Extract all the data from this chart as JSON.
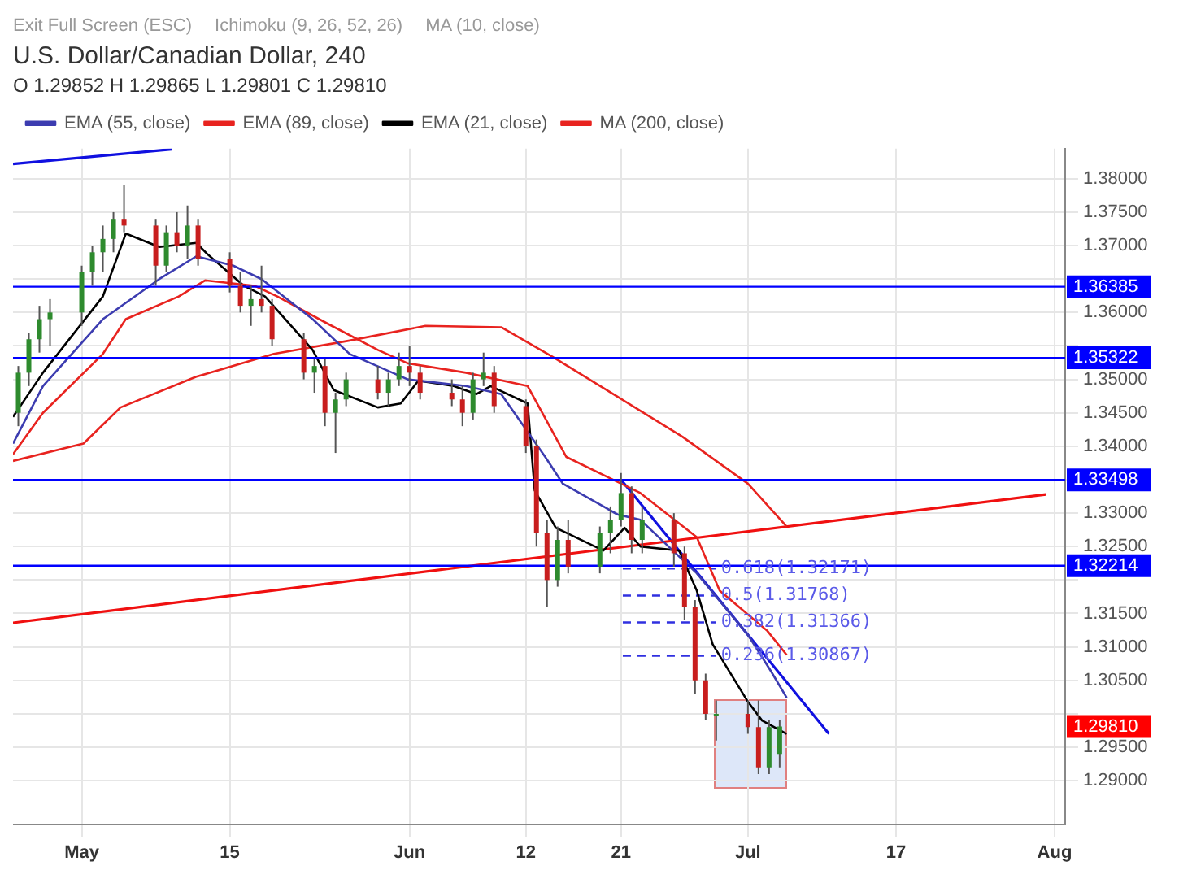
{
  "chart_data": {
    "type": "candlestick",
    "title": "U.S. Dollar/Canadian Dollar, 240",
    "subtitle": "O 1.29852 H 1.29865 L 1.29801 C 1.29810",
    "x": [
      "--04-25",
      "--04-26",
      "--04-27",
      "--04-28",
      "--05-01",
      "--05-02",
      "--05-03",
      "--05-04",
      "--05-05",
      "--05-08",
      "--05-09",
      "--05-10",
      "--05-11",
      "--05-12",
      "--05-15",
      "--05-16",
      "--05-17",
      "--05-18",
      "--05-19",
      "--05-22",
      "--05-23",
      "--05-24",
      "--05-25",
      "--05-26",
      "--05-29",
      "--05-30",
      "--05-31",
      "--06-01",
      "--06-02",
      "--06-05",
      "--06-06",
      "--06-07",
      "--06-08",
      "--06-09",
      "--06-12",
      "--06-13",
      "--06-14",
      "--06-15",
      "--06-16",
      "--06-19",
      "--06-20",
      "--06-21",
      "--06-22",
      "--06-23",
      "--06-26",
      "--06-27",
      "--06-28",
      "--06-29",
      "--06-30",
      "--07-03",
      "--07-04",
      "--07-05",
      "--07-06"
    ],
    "ohlc": [
      [
        1.345,
        1.352,
        1.343,
        1.351
      ],
      [
        1.351,
        1.357,
        1.349,
        1.356
      ],
      [
        1.356,
        1.361,
        1.354,
        1.359
      ],
      [
        1.359,
        1.362,
        1.355,
        1.36
      ],
      [
        1.36,
        1.367,
        1.358,
        1.366
      ],
      [
        1.366,
        1.37,
        1.364,
        1.369
      ],
      [
        1.369,
        1.373,
        1.366,
        1.371
      ],
      [
        1.371,
        1.375,
        1.369,
        1.374
      ],
      [
        1.374,
        1.379,
        1.372,
        1.373
      ],
      [
        1.373,
        1.374,
        1.364,
        1.367
      ],
      [
        1.367,
        1.373,
        1.366,
        1.372
      ],
      [
        1.372,
        1.375,
        1.369,
        1.37
      ],
      [
        1.37,
        1.376,
        1.368,
        1.373
      ],
      [
        1.373,
        1.374,
        1.367,
        1.368
      ],
      [
        1.368,
        1.369,
        1.363,
        1.364
      ],
      [
        1.364,
        1.366,
        1.36,
        1.361
      ],
      [
        1.361,
        1.364,
        1.358,
        1.362
      ],
      [
        1.362,
        1.367,
        1.36,
        1.361
      ],
      [
        1.361,
        1.362,
        1.355,
        1.356
      ],
      [
        1.356,
        1.357,
        1.35,
        1.351
      ],
      [
        1.351,
        1.353,
        1.348,
        1.352
      ],
      [
        1.352,
        1.353,
        1.343,
        1.345
      ],
      [
        1.345,
        1.348,
        1.339,
        1.347
      ],
      [
        1.347,
        1.351,
        1.346,
        1.35
      ],
      [
        1.35,
        1.352,
        1.347,
        1.348
      ],
      [
        1.348,
        1.351,
        1.346,
        1.35
      ],
      [
        1.35,
        1.354,
        1.349,
        1.352
      ],
      [
        1.352,
        1.355,
        1.349,
        1.351
      ],
      [
        1.351,
        1.352,
        1.347,
        1.348
      ],
      [
        1.348,
        1.35,
        1.346,
        1.347
      ],
      [
        1.347,
        1.349,
        1.343,
        1.345
      ],
      [
        1.345,
        1.351,
        1.344,
        1.35
      ],
      [
        1.35,
        1.354,
        1.349,
        1.351
      ],
      [
        1.351,
        1.352,
        1.345,
        1.346
      ],
      [
        1.346,
        1.347,
        1.339,
        1.34
      ],
      [
        1.34,
        1.341,
        1.325,
        1.327
      ],
      [
        1.327,
        1.329,
        1.316,
        1.32
      ],
      [
        1.32,
        1.328,
        1.319,
        1.326
      ],
      [
        1.326,
        1.329,
        1.321,
        1.322
      ],
      [
        1.322,
        1.328,
        1.321,
        1.327
      ],
      [
        1.327,
        1.331,
        1.324,
        1.329
      ],
      [
        1.329,
        1.336,
        1.328,
        1.333
      ],
      [
        1.333,
        1.334,
        1.324,
        1.326
      ],
      [
        1.326,
        1.331,
        1.324,
        1.329
      ],
      [
        1.329,
        1.33,
        1.322,
        1.324
      ],
      [
        1.324,
        1.325,
        1.314,
        1.316
      ],
      [
        1.316,
        1.317,
        1.303,
        1.305
      ],
      [
        1.305,
        1.306,
        1.299,
        1.3
      ],
      [
        1.3,
        1.302,
        1.296,
        1.3
      ],
      [
        1.3,
        1.302,
        1.297,
        1.298
      ],
      [
        1.298,
        1.302,
        1.291,
        1.292
      ],
      [
        1.292,
        1.299,
        1.291,
        1.298
      ],
      [
        1.294,
        1.299,
        1.292,
        1.2981
      ]
    ],
    "value_labels": [
      null,
      null,
      null,
      null,
      null,
      null,
      null,
      null,
      null,
      null,
      null,
      null,
      null,
      null,
      null,
      null,
      null,
      null,
      null,
      null,
      null,
      null,
      null,
      null,
      null,
      null,
      null,
      null,
      null,
      null,
      null,
      null,
      null,
      null,
      null,
      null,
      null,
      null,
      null,
      null,
      null,
      null,
      null,
      null,
      null,
      null,
      null,
      null,
      null,
      null,
      null,
      null,
      "1.29810"
    ],
    "series": [
      {
        "type": "line",
        "name": "EMA (55, close)",
        "color": "#3c3cb0",
        "x": [
          "--04-24T12:00",
          "--04-27T08:00",
          "--05-03",
          "--05-08T08:00",
          "--05-11T20:00",
          "--05-15T08:00",
          "--05-18",
          "--05-22T20:00",
          "--05-26T08:00",
          "--05-31T20:00",
          "--06-06T08:00",
          "--06-09T16:00",
          "--06-13T20:00",
          "--06-15T12:00",
          "--06-19T08:00",
          "--06-20T16:00",
          "--06-22T20:00",
          "--06-28T04:00",
          "--07-03",
          "--07-05T04:00",
          "--07-06T16:00"
        ],
        "values": [
          1.3404,
          1.349,
          1.359,
          1.365,
          1.3684,
          1.367,
          1.365,
          1.359,
          1.3538,
          1.35,
          1.349,
          1.3478,
          1.3384,
          1.3344,
          1.331,
          1.3298,
          1.329,
          1.321,
          1.3118,
          1.3064,
          1.3024
        ]
      },
      {
        "type": "line",
        "name": "EMA (89, close)",
        "color": "#e8231f",
        "x": [
          "--04-24T12:00",
          "--04-27T08:00",
          "--05-03",
          "--05-05T04:00",
          "--05-10T04:00",
          "--05-12T16:00",
          "--05-17T08:00",
          "--05-19T12:00",
          "--05-24T04:00",
          "--05-29",
          "--05-31T20:00",
          "--06-06T08:00",
          "--06-12T04:00",
          "--06-15T20:00",
          "--06-22T20:00",
          "--06-28T04:00",
          "--06-30T08:00",
          "--07-04T20:00",
          "--07-06T16:00"
        ],
        "values": [
          1.3388,
          1.345,
          1.3538,
          1.359,
          1.3624,
          1.3648,
          1.364,
          1.3624,
          1.3584,
          1.3544,
          1.3524,
          1.351,
          1.349,
          1.3384,
          1.333,
          1.3264,
          1.3184,
          1.3124,
          1.3088
        ]
      },
      {
        "type": "line",
        "name": "EMA (21, close)",
        "color": "#000000",
        "x": [
          "--04-24T12:00",
          "--04-27T08:00",
          "--05-03",
          "--05-05T04:00",
          "--05-08T08:00",
          "--05-11T20:00",
          "--05-12T20:00",
          "--05-16T08:00",
          "--05-18T08:00",
          "--05-22T20:00",
          "--05-24T20:00",
          "--05-29",
          "--05-31T04:00",
          "--06-01T20:00",
          "--06-05T04:00",
          "--06-07T08:00",
          "--06-08T16:00",
          "--06-12T04:00",
          "--06-12T20:00",
          "--06-14T20:00",
          "--06-19T08:00",
          "--06-21T08:00",
          "--06-22T20:00",
          "--06-26T12:00",
          "--06-28T04:00",
          "--06-29T16:00",
          "--07-03",
          "--07-04T08:00",
          "--07-06T16:00"
        ],
        "values": [
          1.3444,
          1.351,
          1.3624,
          1.3718,
          1.3698,
          1.3704,
          1.3688,
          1.364,
          1.3624,
          1.3544,
          1.3484,
          1.3458,
          1.3464,
          1.3498,
          1.349,
          1.3478,
          1.349,
          1.3464,
          1.3334,
          1.3278,
          1.3244,
          1.3278,
          1.325,
          1.3244,
          1.3184,
          1.3104,
          1.3018,
          1.299,
          1.297
        ]
      },
      {
        "type": "line",
        "name": "MA (200, close)",
        "color": "#e8231f",
        "x": [
          "--04-24T12:00",
          "--05-01T04:00",
          "--05-04T16:00",
          "--05-11T20:00",
          "--05-19T04:00",
          "--05-26T08:00",
          "--06-02T12:00",
          "--06-09T16:00",
          "--06-14T12:00",
          "--06-20T16:00",
          "--06-26T20:00",
          "--07-03",
          "--07-06T16:00"
        ],
        "values": [
          1.3378,
          1.3404,
          1.3458,
          1.3504,
          1.3538,
          1.3558,
          1.358,
          1.3578,
          1.3534,
          1.3474,
          1.3414,
          1.3344,
          1.328
        ]
      },
      {
        "type": "line",
        "color": "#f01010",
        "x": [
          "--04-24T12:00",
          "--07-31T04:00"
        ],
        "values": [
          1.3136,
          1.3328
        ]
      },
      {
        "type": "line",
        "color": "#1010e0",
        "x": [
          "--04-24T12:00",
          "--05-09T12:00"
        ],
        "values": [
          1.3822,
          1.3844
        ]
      },
      {
        "type": "line",
        "color": "#1010e0",
        "x": [
          "--06-21",
          "--07-10T16:00"
        ],
        "values": [
          1.335,
          1.297
        ]
      },
      {
        "type": "line",
        "name": "0.618(1.32171)",
        "color": "#3030e0",
        "line_style": "dashed",
        "x": [
          "--06-21T04:00",
          "--06-30"
        ],
        "values": [
          1.32171,
          1.32171
        ]
      },
      {
        "type": "line",
        "name": "0.5(1.31768)",
        "color": "#3030e0",
        "line_style": "dashed",
        "x": [
          "--06-21T04:00",
          "--06-30"
        ],
        "values": [
          1.31768,
          1.31768
        ]
      },
      {
        "type": "line",
        "name": "0.382(1.31366)",
        "color": "#3030e0",
        "line_style": "dashed",
        "x": [
          "--06-21T04:00",
          "--06-30"
        ],
        "values": [
          1.31366,
          1.31366
        ]
      },
      {
        "type": "line",
        "name": "0.236(1.30867)",
        "color": "#3030e0",
        "line_style": "dashed",
        "x": [
          "--06-21T04:00",
          "--06-30"
        ],
        "values": [
          1.30867,
          1.30867
        ]
      }
    ],
    "xlim": [
      "--04-24T12:00",
      "--08-02"
    ],
    "xticks": [
      {
        "value": "--05-01",
        "label": "May"
      },
      {
        "value": "--05-15",
        "label": "15"
      },
      {
        "value": "--06-01",
        "label": "Jun"
      },
      {
        "value": "--06-12",
        "label": "12"
      },
      {
        "value": "--06-21",
        "label": "21"
      },
      {
        "value": "--07-03",
        "label": "Jul"
      },
      {
        "value": "--07-17",
        "label": "17"
      },
      {
        "value": "--08-01",
        "label": "Aug"
      }
    ],
    "ylim": [
      1.2835,
      1.3845
    ],
    "yticks": [
      {
        "value": 1.29,
        "label": "1.29000"
      },
      {
        "value": 1.295,
        "label": "1.29500"
      },
      {
        "value": 1.3,
        "label": null
      },
      {
        "value": 1.305,
        "label": "1.30500"
      },
      {
        "value": 1.31,
        "label": "1.31000"
      },
      {
        "value": 1.315,
        "label": "1.31500"
      },
      {
        "value": 1.32,
        "label": null
      },
      {
        "value": 1.325,
        "label": "1.32500"
      },
      {
        "value": 1.33,
        "label": "1.33000"
      },
      {
        "value": 1.335,
        "label": null
      },
      {
        "value": 1.34,
        "label": "1.34000"
      },
      {
        "value": 1.345,
        "label": "1.34500"
      },
      {
        "value": 1.35,
        "label": "1.35000"
      },
      {
        "value": 1.355,
        "label": null
      },
      {
        "value": 1.36,
        "label": "1.36000"
      },
      {
        "value": 1.365,
        "label": null
      },
      {
        "value": 1.37,
        "label": "1.37000"
      },
      {
        "value": 1.375,
        "label": "1.37500"
      },
      {
        "value": 1.38,
        "label": "1.38000"
      }
    ],
    "ref_lines": [
      {
        "axis": "y",
        "value": 1.36385,
        "label": "1.36385",
        "color": "#0000ff"
      },
      {
        "axis": "y",
        "value": 1.35322,
        "label": "1.35322",
        "color": "#0000ff"
      },
      {
        "axis": "y",
        "value": 1.33498,
        "label": "1.33498",
        "color": "#0000ff"
      },
      {
        "axis": "y",
        "value": 1.32214,
        "label": "1.32214",
        "color": "#0000ff"
      }
    ],
    "annotations": [
      "Exit Full Screen (ESC)",
      "Ichimoku (9, 26, 52, 26)",
      "MA (10, close)"
    ],
    "grid": true,
    "legend": "top left"
  }
}
